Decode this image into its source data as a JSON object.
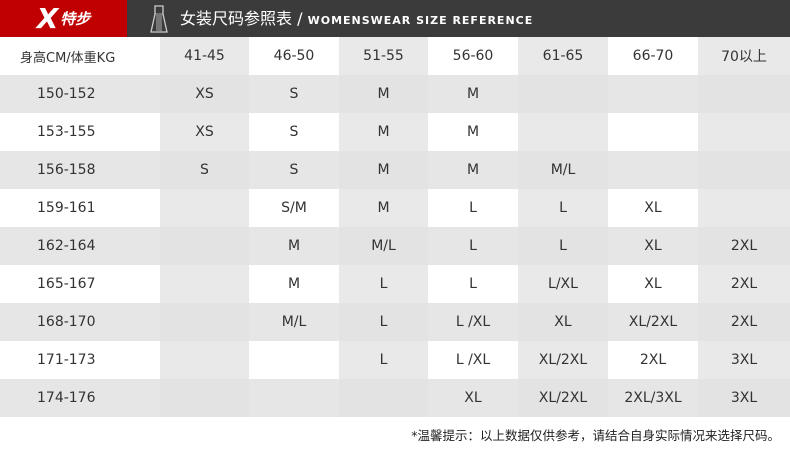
{
  "brand": {
    "logo_text": "特步",
    "logo_color": "#c00000"
  },
  "header": {
    "title_cn": "女装尺码参照表 / ",
    "title_en": "WOMENSWEAR SIZE REFERENCE",
    "icon": "dress-icon"
  },
  "table": {
    "columns": [
      "身高CM/体重KG",
      "41-45",
      "46-50",
      "51-55",
      "56-60",
      "61-65",
      "66-70",
      "70以上"
    ],
    "rows": [
      [
        "150-152",
        "XS",
        "S",
        "M",
        "M",
        "",
        "",
        ""
      ],
      [
        "153-155",
        "XS",
        "S",
        "M",
        "M",
        "",
        "",
        ""
      ],
      [
        "156-158",
        "S",
        "S",
        "M",
        "M",
        "M/L",
        "",
        ""
      ],
      [
        "159-161",
        "",
        "S/M",
        "M",
        "L",
        "L",
        "XL",
        ""
      ],
      [
        "162-164",
        "",
        "M",
        "M/L",
        "L",
        "L",
        "XL",
        "2XL"
      ],
      [
        "165-167",
        "",
        "M",
        "L",
        "L",
        "L/XL",
        "XL",
        "2XL"
      ],
      [
        "168-170",
        "",
        "M/L",
        "L",
        "L /XL",
        "XL",
        "XL/2XL",
        "2XL"
      ],
      [
        "171-173",
        "",
        "",
        "L",
        "L /XL",
        "XL/2XL",
        "2XL",
        "3XL"
      ],
      [
        "174-176",
        "",
        "",
        "",
        "XL",
        "XL/2XL",
        "2XL/3XL",
        "3XL"
      ]
    ]
  },
  "footer": {
    "note": "*温馨提示：以上数据仅供参考，请结合自身实际情况来选择尺码。"
  }
}
